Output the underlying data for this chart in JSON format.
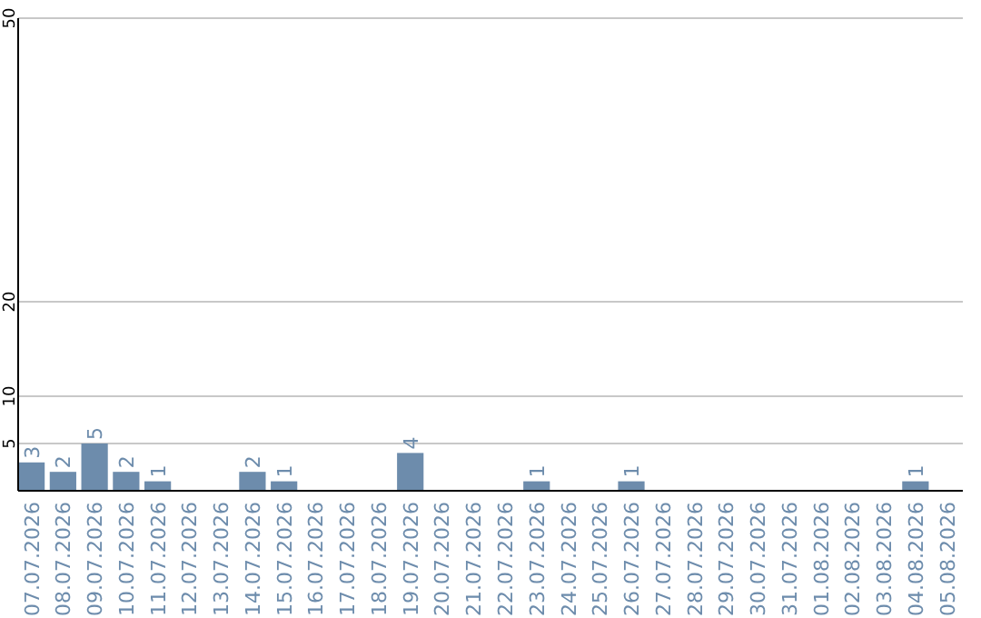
{
  "chart_data": {
    "type": "bar",
    "categories": [
      "07.07.2026",
      "08.07.2026",
      "09.07.2026",
      "10.07.2026",
      "11.07.2026",
      "12.07.2026",
      "13.07.2026",
      "14.07.2026",
      "15.07.2026",
      "16.07.2026",
      "17.07.2026",
      "18.07.2026",
      "19.07.2026",
      "20.07.2026",
      "21.07.2026",
      "22.07.2026",
      "23.07.2026",
      "24.07.2026",
      "25.07.2026",
      "26.07.2026",
      "27.07.2026",
      "28.07.2026",
      "29.07.2026",
      "30.07.2026",
      "31.07.2026",
      "01.08.2026",
      "02.08.2026",
      "03.08.2026",
      "04.08.2026",
      "05.08.2026"
    ],
    "values": [
      3,
      2,
      5,
      2,
      1,
      0,
      0,
      2,
      1,
      0,
      0,
      0,
      4,
      0,
      0,
      0,
      1,
      0,
      0,
      1,
      0,
      0,
      0,
      0,
      0,
      0,
      0,
      0,
      1,
      0
    ],
    "value_labels": [
      "3",
      "2",
      "5",
      "2",
      "1",
      null,
      null,
      "2",
      "1",
      null,
      null,
      null,
      "4",
      null,
      null,
      null,
      "1",
      null,
      null,
      "1",
      null,
      null,
      null,
      null,
      null,
      null,
      null,
      null,
      "1",
      null
    ],
    "color": "#6d8cac",
    "ylim": [
      0,
      50
    ],
    "yticks": [
      5,
      10,
      20,
      50
    ],
    "grid": "y"
  }
}
